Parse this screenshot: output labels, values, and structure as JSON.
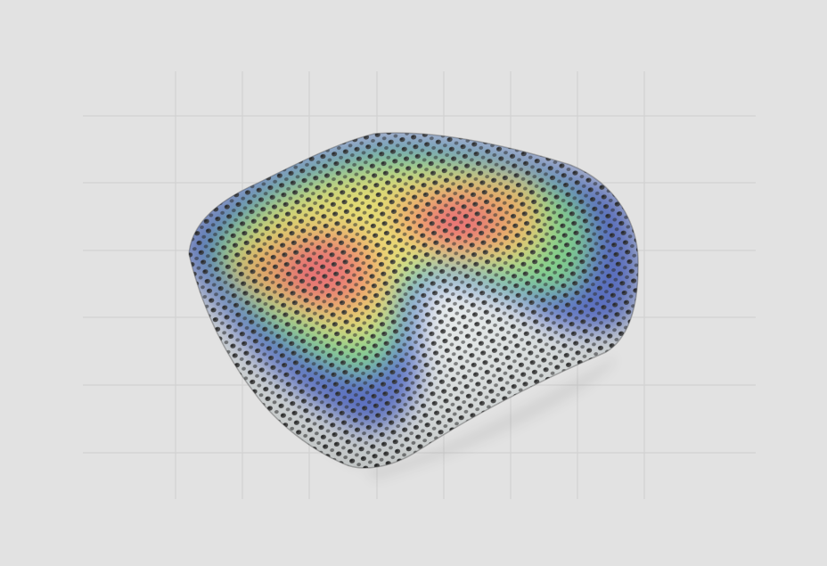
{
  "scene": {
    "background_color": "#e2e2e2",
    "grid_color": "#cfcfcf",
    "heatmap_palette": [
      "#ee6a6a",
      "#f0a860",
      "#e8e06a",
      "#7ed88a",
      "#3cc4b0",
      "#5670d0"
    ],
    "base_surface_color": "#e9eeee"
  }
}
